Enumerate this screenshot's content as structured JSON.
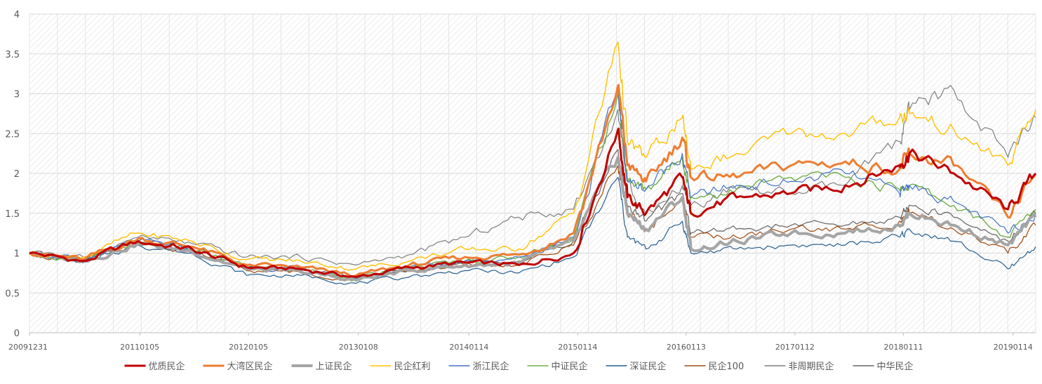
{
  "chart_data": {
    "type": "line",
    "title": "",
    "xlabel": "",
    "ylabel": "",
    "ylim": [
      0,
      4
    ],
    "yticks": [
      0,
      0.5,
      1,
      1.5,
      2,
      2.5,
      3,
      3.5,
      4
    ],
    "ytick_labels": [
      "0",
      "0.5",
      "1",
      "1.5",
      "2",
      "2.5",
      "3",
      "3.5",
      "4"
    ],
    "x": [
      "20091231",
      "20100630",
      "20101231",
      "20110630",
      "20111230",
      "20120629",
      "20121231",
      "20130628",
      "20131231",
      "20140630",
      "20141231",
      "20150529",
      "20150630",
      "20150831",
      "20151231",
      "20160129",
      "20160630",
      "20161230",
      "20170630",
      "20171229",
      "20180131",
      "20180629",
      "20181228",
      "20190331"
    ],
    "xtick_labels": [
      "20091231",
      "20110105",
      "20120105",
      "20130108",
      "20140114",
      "20150114",
      "20160113",
      "20170112",
      "20180111",
      "20190114"
    ],
    "grid": true,
    "legend_position": "bottom",
    "series": [
      {
        "name": "优质民企",
        "color": "#c00000",
        "width": 3,
        "values": [
          1.0,
          0.9,
          1.15,
          1.05,
          0.82,
          0.8,
          0.7,
          0.82,
          0.88,
          0.85,
          1.0,
          2.55,
          1.7,
          1.5,
          1.95,
          1.5,
          1.7,
          1.75,
          1.85,
          2.1,
          2.25,
          2.0,
          1.55,
          2.0
        ]
      },
      {
        "name": "大湾区民企",
        "color": "#ed7d31",
        "width": 3,
        "values": [
          1.0,
          0.92,
          1.18,
          1.08,
          0.85,
          0.82,
          0.72,
          0.85,
          0.95,
          0.98,
          1.25,
          3.1,
          2.1,
          1.9,
          2.45,
          1.95,
          1.95,
          2.1,
          2.15,
          2.05,
          2.25,
          2.1,
          1.45,
          2.0
        ]
      },
      {
        "name": "上证民企",
        "color": "#a5a5a5",
        "width": 4,
        "values": [
          1.0,
          0.9,
          1.12,
          1.02,
          0.8,
          0.76,
          0.66,
          0.78,
          0.85,
          0.87,
          1.15,
          2.2,
          1.5,
          1.3,
          1.7,
          1.05,
          1.15,
          1.25,
          1.25,
          1.35,
          1.5,
          1.35,
          1.1,
          1.45
        ]
      },
      {
        "name": "民企红利",
        "color": "#ffc000",
        "width": 1.4,
        "values": [
          1.0,
          0.95,
          1.25,
          1.15,
          0.92,
          0.9,
          0.8,
          0.9,
          1.05,
          1.05,
          1.5,
          3.65,
          2.4,
          2.2,
          2.7,
          2.05,
          2.25,
          2.5,
          2.5,
          2.7,
          2.75,
          2.55,
          2.1,
          2.8
        ]
      },
      {
        "name": "浙江民企",
        "color": "#4472c4",
        "width": 1.2,
        "values": [
          1.0,
          0.9,
          1.15,
          1.05,
          0.82,
          0.8,
          0.68,
          0.82,
          0.9,
          0.95,
          1.2,
          3.05,
          1.9,
          1.8,
          2.25,
          1.7,
          1.85,
          1.9,
          2.0,
          1.75,
          1.85,
          1.65,
          1.25,
          1.5
        ]
      },
      {
        "name": "中证民企",
        "color": "#70ad47",
        "width": 1.4,
        "values": [
          1.0,
          0.9,
          1.15,
          1.05,
          0.82,
          0.8,
          0.68,
          0.82,
          0.9,
          0.95,
          1.2,
          3.0,
          1.9,
          1.8,
          2.2,
          1.7,
          1.8,
          1.95,
          1.95,
          1.8,
          1.85,
          1.6,
          1.2,
          1.55
        ]
      },
      {
        "name": "深证民企",
        "color": "#255e91",
        "width": 1.2,
        "values": [
          1.0,
          0.88,
          1.1,
          1.0,
          0.72,
          0.72,
          0.62,
          0.7,
          0.78,
          0.75,
          0.95,
          1.95,
          1.2,
          1.05,
          1.4,
          1.0,
          1.05,
          1.1,
          1.1,
          1.2,
          1.3,
          1.15,
          0.8,
          1.08
        ]
      },
      {
        "name": "民企100",
        "color": "#9e480e",
        "width": 1.2,
        "values": [
          1.0,
          0.9,
          1.12,
          1.02,
          0.78,
          0.76,
          0.66,
          0.78,
          0.85,
          0.85,
          1.1,
          2.1,
          1.5,
          1.3,
          1.65,
          1.2,
          1.2,
          1.3,
          1.3,
          1.4,
          1.5,
          1.3,
          1.0,
          1.35
        ]
      },
      {
        "name": "非周期民企",
        "color": "#7f7f7f",
        "width": 1.2,
        "values": [
          1.0,
          0.95,
          1.2,
          1.12,
          0.95,
          0.95,
          0.85,
          0.98,
          1.2,
          1.45,
          1.55,
          2.8,
          1.9,
          1.5,
          1.85,
          1.6,
          1.8,
          1.75,
          1.85,
          2.4,
          2.8,
          3.05,
          2.2,
          2.7
        ]
      },
      {
        "name": "中华民企",
        "color": "#636363",
        "width": 1.2,
        "values": [
          1.0,
          0.9,
          1.15,
          1.05,
          0.82,
          0.78,
          0.68,
          0.8,
          0.88,
          0.9,
          1.15,
          2.3,
          1.6,
          1.4,
          1.75,
          1.25,
          1.3,
          1.35,
          1.35,
          1.45,
          1.6,
          1.45,
          1.15,
          1.5
        ]
      }
    ]
  }
}
